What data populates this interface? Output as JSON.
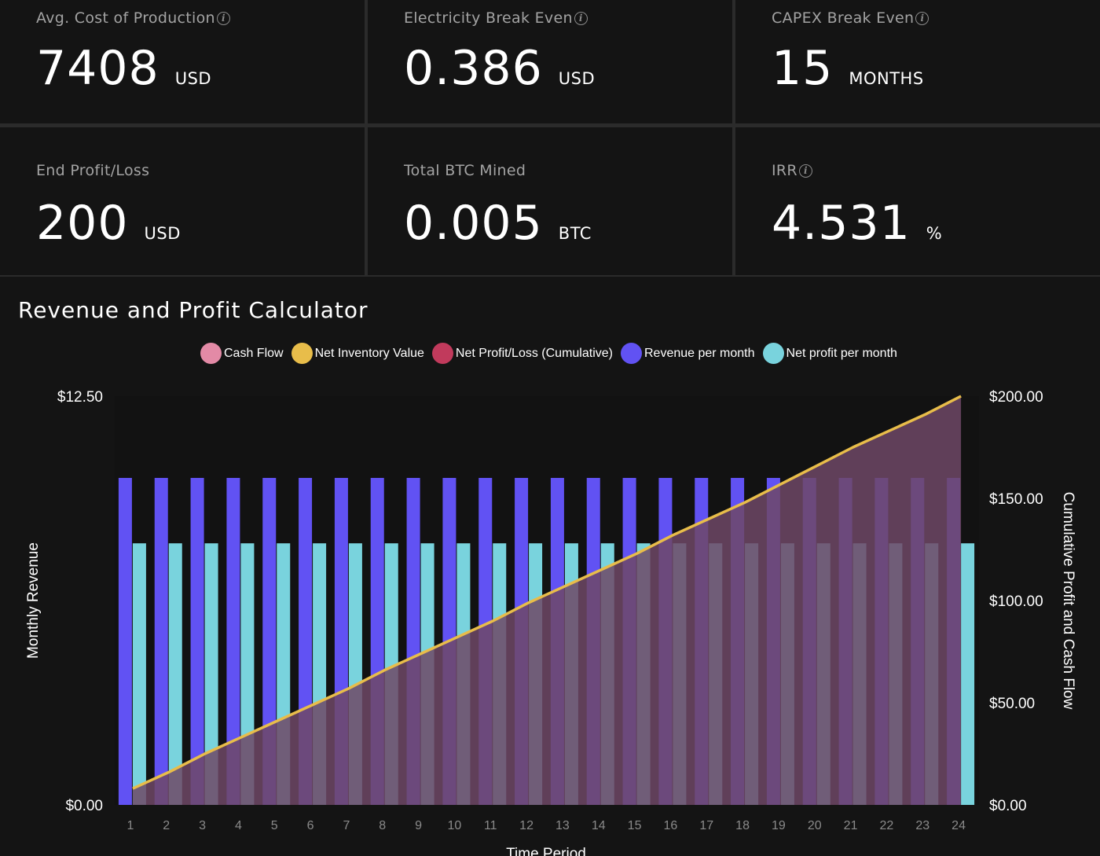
{
  "stats": [
    {
      "label": "Avg. Cost of Production",
      "value": "7408",
      "unit": "USD",
      "info": true
    },
    {
      "label": "Electricity Break Even",
      "value": "0.386",
      "unit": "USD",
      "info": true
    },
    {
      "label": "CAPEX Break Even",
      "value": "15",
      "unit": "MONTHS",
      "info": true
    },
    {
      "label": "End Profit/Loss",
      "value": "200",
      "unit": "USD",
      "info": false
    },
    {
      "label": "Total BTC Mined",
      "value": "0.005",
      "unit": "BTC",
      "info": false
    },
    {
      "label": "IRR",
      "value": "4.531",
      "unit": "%",
      "info": true
    }
  ],
  "info_icon_glyph": "i",
  "chart_data": {
    "type": "bar",
    "title": "Revenue and Profit Calculator",
    "xlabel": "Time Period",
    "ylabel": "Monthly Revenue",
    "y2label": "Cumulative Profit and Cash Flow",
    "ylim": [
      0,
      12.5
    ],
    "y2lim": [
      0,
      200
    ],
    "yticks": [
      "$12.50",
      "$0.00"
    ],
    "y2ticks": [
      "$200.00",
      "$150.00",
      "$100.00",
      "$50.00",
      "$0.00"
    ],
    "y2tick_values": [
      200,
      150,
      100,
      50,
      0
    ],
    "categories": [
      "1",
      "2",
      "3",
      "4",
      "5",
      "6",
      "7",
      "8",
      "9",
      "10",
      "11",
      "12",
      "13",
      "14",
      "15",
      "16",
      "17",
      "18",
      "19",
      "20",
      "21",
      "22",
      "23",
      "24"
    ],
    "legend_placement": "top-center",
    "legend": [
      {
        "name": "Cash Flow",
        "color": "#e38aa6"
      },
      {
        "name": "Net Inventory Value",
        "color": "#e8bd4a"
      },
      {
        "name": "Net Profit/Loss (Cumulative)",
        "color": "#c13a5c"
      },
      {
        "name": "Revenue per month",
        "color": "#6152f3"
      },
      {
        "name": "Net profit per month",
        "color": "#79d3dd"
      }
    ],
    "series": [
      {
        "name": "Revenue per month",
        "type": "bar",
        "axis": "left",
        "color": "#6152f3",
        "values": [
          10,
          10,
          10,
          10,
          10,
          10,
          10,
          10,
          10,
          10,
          10,
          10,
          10,
          10,
          10,
          10,
          10,
          10,
          10,
          10,
          10,
          10,
          10,
          10
        ]
      },
      {
        "name": "Net profit per month",
        "type": "bar",
        "axis": "left",
        "color": "#79d3dd",
        "values": [
          8,
          8,
          8,
          8,
          8,
          8,
          8,
          8,
          8,
          8,
          8,
          8,
          8,
          8,
          8,
          8,
          8,
          8,
          8,
          8,
          8,
          8,
          8,
          8
        ]
      },
      {
        "name": "Net Profit/Loss (Cumulative)",
        "type": "area",
        "axis": "right",
        "color": "#6e4866",
        "values": [
          8,
          16,
          25,
          33,
          41,
          49,
          57,
          66,
          74,
          82,
          90,
          99,
          107,
          115,
          123,
          132,
          140,
          148,
          157,
          166,
          175,
          183,
          191,
          200
        ]
      },
      {
        "name": "Net Inventory Value",
        "type": "line",
        "axis": "right",
        "color": "#e8bd4a",
        "values": [
          8,
          16,
          25,
          33,
          41,
          49,
          57,
          66,
          74,
          82,
          90,
          99,
          107,
          115,
          123,
          132,
          140,
          148,
          157,
          166,
          175,
          183,
          191,
          200
        ]
      }
    ]
  }
}
